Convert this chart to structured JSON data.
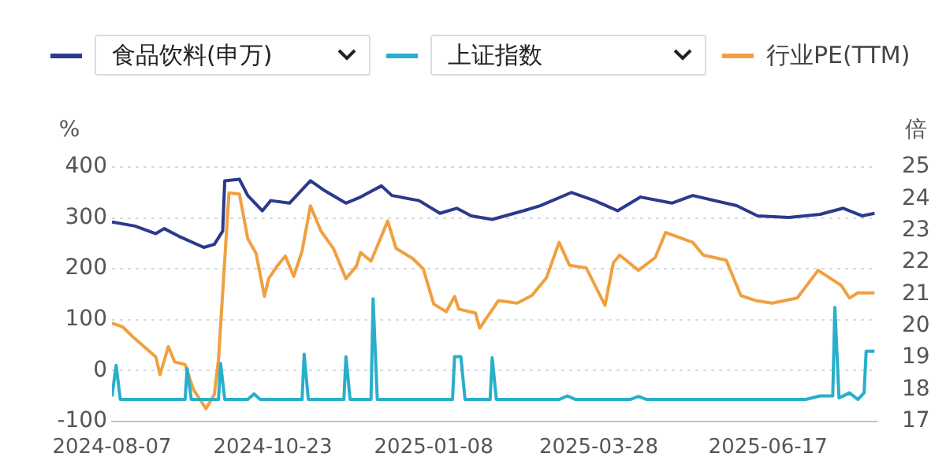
{
  "chart_data": {
    "type": "line",
    "ylabel": "%",
    "y2label": "倍",
    "legend": "top",
    "grid": "y",
    "marker": "none",
    "line_style": "solid",
    "xlim": [
      "2024-08-07",
      "2025-08-08"
    ],
    "xticks": [
      "2024-08-07",
      "2024-10-23",
      "2025-01-08",
      "2025-03-28",
      "2025-06-17"
    ],
    "ylim": [
      -100,
      400
    ],
    "yticks": [
      -100,
      0,
      100,
      200,
      300,
      400
    ],
    "y2lim": [
      17,
      25
    ],
    "y2ticks": [
      17,
      18,
      19,
      20,
      21,
      22,
      23,
      24,
      25
    ],
    "series": [
      {
        "name": "食品饮料(申万)",
        "color": "#2b3a8c",
        "axis": "y",
        "x": [
          "2024-08-07",
          "2024-08-18",
          "2024-08-28",
          "2024-09-01",
          "2024-09-08",
          "2024-09-20",
          "2024-09-25",
          "2024-09-29",
          "2024-09-30",
          "2024-10-07",
          "2024-10-11",
          "2024-10-18",
          "2024-10-22",
          "2024-10-31",
          "2024-11-10",
          "2024-11-17",
          "2024-11-27",
          "2024-12-04",
          "2024-12-14",
          "2024-12-19",
          "2025-01-01",
          "2025-01-11",
          "2025-01-19",
          "2025-01-26",
          "2025-02-05",
          "2025-02-20",
          "2025-02-28",
          "2025-03-15",
          "2025-03-26",
          "2025-04-06",
          "2025-04-17",
          "2025-05-02",
          "2025-05-12",
          "2025-06-02",
          "2025-06-12",
          "2025-06-27",
          "2025-07-12",
          "2025-07-23",
          "2025-08-01",
          "2025-08-07"
        ],
        "values": [
          292,
          284,
          269,
          279,
          264,
          242,
          248,
          274,
          373,
          376,
          344,
          314,
          334,
          329,
          373,
          353,
          329,
          341,
          363,
          344,
          334,
          309,
          319,
          304,
          297,
          314,
          324,
          350,
          334,
          314,
          341,
          329,
          344,
          324,
          304,
          301,
          307,
          319,
          304,
          309
        ]
      },
      {
        "name": "上证指数",
        "color": "#29afc9",
        "axis": "y",
        "x": [
          "2024-08-07",
          "2024-08-09",
          "2024-08-11",
          "2024-09-11",
          "2024-09-12",
          "2024-09-14",
          "2024-09-27",
          "2024-09-28",
          "2024-09-30",
          "2024-10-11",
          "2024-10-14",
          "2024-10-17",
          "2024-11-06",
          "2024-11-07",
          "2024-11-09",
          "2024-11-26",
          "2024-11-27",
          "2024-11-29",
          "2024-12-09",
          "2024-12-10",
          "2024-12-12",
          "2025-01-17",
          "2025-01-18",
          "2025-01-21",
          "2025-01-23",
          "2025-02-04",
          "2025-02-05",
          "2025-02-07",
          "2025-03-09",
          "2025-03-13",
          "2025-03-17",
          "2025-04-12",
          "2025-04-16",
          "2025-04-20",
          "2025-07-05",
          "2025-07-12",
          "2025-07-18",
          "2025-07-19",
          "2025-07-21",
          "2025-07-26",
          "2025-07-30",
          "2025-08-02",
          "2025-08-03",
          "2025-08-07"
        ],
        "values": [
          -51,
          10,
          -57,
          -57,
          4,
          -57,
          -57,
          14,
          -57,
          -57,
          -46,
          -57,
          -57,
          32,
          -57,
          -57,
          27,
          -57,
          -57,
          141,
          -57,
          -57,
          27,
          27,
          -57,
          -57,
          25,
          -57,
          -57,
          -50,
          -57,
          -57,
          -51,
          -57,
          -57,
          -50,
          -50,
          124,
          -54,
          -44,
          -57,
          -44,
          38,
          38
        ]
      },
      {
        "name": "行业PE(TTM)",
        "color": "#f0a040",
        "axis": "y2",
        "x": [
          "2024-08-07",
          "2024-08-12",
          "2024-08-17",
          "2024-08-28",
          "2024-08-30",
          "2024-09-03",
          "2024-09-06",
          "2024-09-11",
          "2024-09-15",
          "2024-09-21",
          "2024-09-25",
          "2024-09-27",
          "2024-10-02",
          "2024-10-07",
          "2024-10-11",
          "2024-10-15",
          "2024-10-19",
          "2024-10-21",
          "2024-10-25",
          "2024-10-29",
          "2024-11-02",
          "2024-11-06",
          "2024-11-10",
          "2024-11-15",
          "2024-11-21",
          "2024-11-27",
          "2024-12-02",
          "2024-12-04",
          "2024-12-09",
          "2024-12-17",
          "2024-12-21",
          "2024-12-29",
          "2025-01-03",
          "2025-01-08",
          "2025-01-14",
          "2025-01-18",
          "2025-01-20",
          "2025-01-28",
          "2025-01-30",
          "2025-02-08",
          "2025-02-17",
          "2025-02-24",
          "2025-03-03",
          "2025-03-09",
          "2025-03-14",
          "2025-03-22",
          "2025-03-31",
          "2025-04-04",
          "2025-04-07",
          "2025-04-16",
          "2025-04-24",
          "2025-04-29",
          "2025-05-12",
          "2025-05-17",
          "2025-05-28",
          "2025-06-04",
          "2025-06-11",
          "2025-06-19",
          "2025-07-01",
          "2025-07-11",
          "2025-07-22",
          "2025-07-26",
          "2025-07-30",
          "2025-08-07"
        ],
        "values": [
          20.09,
          19.98,
          19.66,
          19.03,
          18.47,
          19.35,
          18.87,
          18.79,
          18.0,
          17.4,
          17.84,
          18.95,
          24.18,
          24.15,
          22.75,
          22.28,
          20.93,
          21.49,
          21.88,
          22.2,
          21.56,
          22.36,
          23.78,
          22.99,
          22.44,
          21.49,
          21.88,
          22.31,
          22.04,
          23.3,
          22.44,
          22.12,
          21.8,
          20.69,
          20.45,
          20.93,
          20.53,
          20.41,
          19.93,
          20.8,
          20.72,
          20.96,
          21.52,
          22.63,
          21.91,
          21.83,
          20.65,
          21.99,
          22.23,
          21.75,
          22.15,
          22.94,
          22.63,
          22.23,
          22.07,
          20.96,
          20.8,
          20.72,
          20.88,
          21.75,
          21.28,
          20.88,
          21.04,
          21.04
        ]
      }
    ]
  }
}
